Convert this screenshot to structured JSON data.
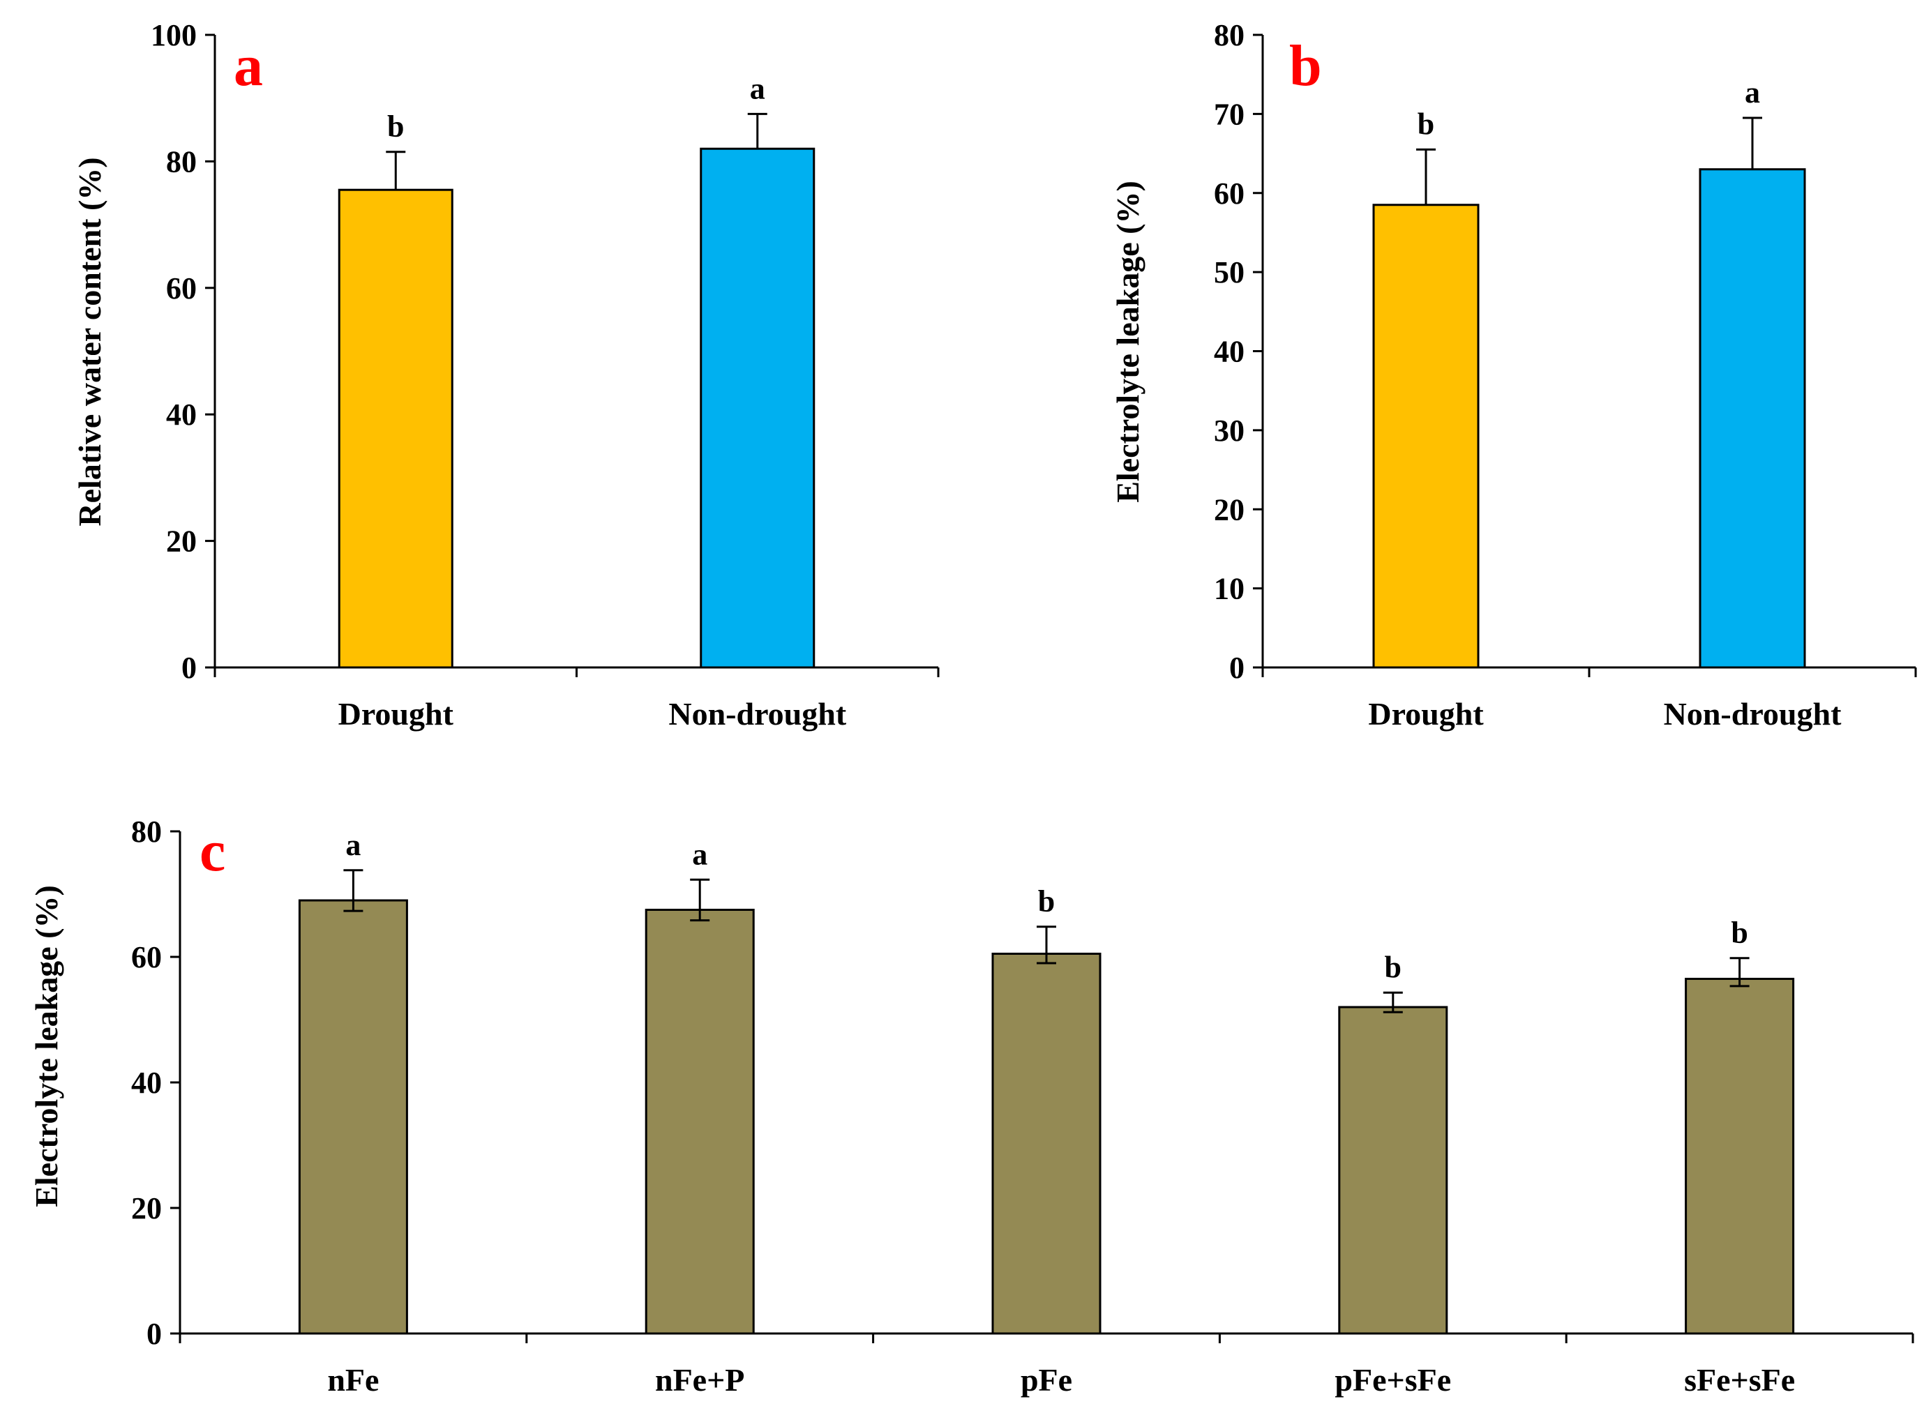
{
  "chart_data": [
    {
      "panel": "a",
      "type": "bar",
      "title": "",
      "xlabel": "",
      "ylabel": "Relative water content (%)",
      "ylim": [
        0,
        100
      ],
      "yticks": [
        0,
        20,
        40,
        60,
        80,
        100
      ],
      "categories": [
        "Drought",
        "Non-drought"
      ],
      "values": [
        75.5,
        82
      ],
      "errors": [
        6,
        5.5
      ],
      "significance": [
        "b",
        "a"
      ],
      "colors": [
        "#FFC000",
        "#00B0F0"
      ],
      "panel_color": "#FF0000",
      "grid": false
    },
    {
      "panel": "b",
      "type": "bar",
      "title": "",
      "xlabel": "",
      "ylabel": "Electrolyte leakage (%)",
      "ylim": [
        0,
        80
      ],
      "yticks": [
        0,
        10,
        20,
        30,
        40,
        50,
        60,
        70,
        80
      ],
      "categories": [
        "Drought",
        "Non-drought"
      ],
      "values": [
        58.5,
        63
      ],
      "errors": [
        7,
        6.5
      ],
      "significance": [
        "b",
        "a"
      ],
      "colors": [
        "#FFC000",
        "#00B0F0"
      ],
      "panel_color": "#FF0000",
      "grid": false
    },
    {
      "panel": "c",
      "type": "bar",
      "title": "",
      "xlabel": "",
      "ylabel": "Electrolyte leakage (%)",
      "ylim": [
        0,
        80
      ],
      "yticks": [
        0,
        20,
        40,
        60,
        80
      ],
      "categories": [
        "nFe",
        "nFe+P",
        "pFe",
        "pFe+sFe",
        "sFe+sFe"
      ],
      "values": [
        69,
        67.5,
        60.5,
        52,
        56.5
      ],
      "errors": [
        4.8,
        4.8,
        4.3,
        2.3,
        3.3
      ],
      "significance": [
        "a",
        "a",
        "b",
        "b",
        "b"
      ],
      "colors": [
        "#948A54",
        "#948A54",
        "#948A54",
        "#948A54",
        "#948A54"
      ],
      "panel_color": "#FF0000",
      "grid": false
    }
  ]
}
